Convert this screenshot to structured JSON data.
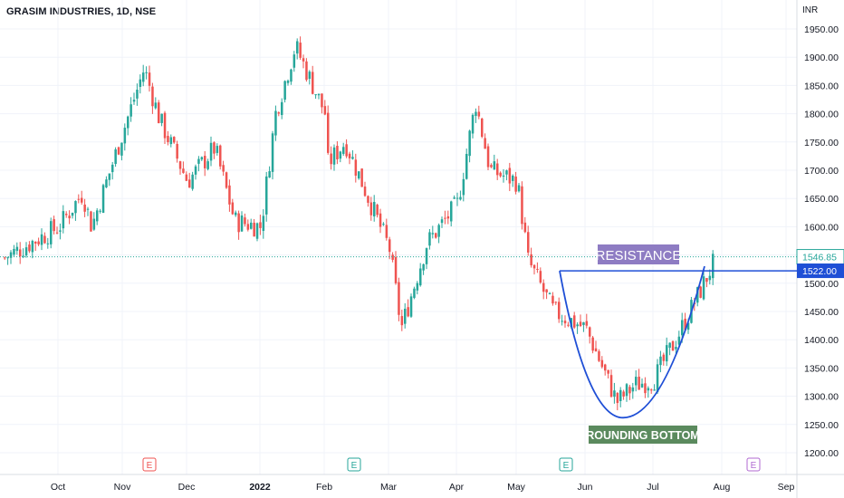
{
  "header": {
    "title": "GRASIM INDUSTRIES, 1D, NSE",
    "currency": "INR"
  },
  "colors": {
    "up": "#26a69a",
    "down": "#ef5350",
    "line": "#1f4fd6",
    "resistance_label_bg": "#8e7cc3",
    "bottom_label_bg": "#5b8a5e",
    "earn_down": "#ef5350",
    "earn_up": "#26a69a",
    "earn_future": "#b069d1"
  },
  "annotations": {
    "resistance": "RESISTANCE",
    "rounding_bottom": "ROUNDING BOTTOM"
  },
  "price_labels": {
    "last": "1546.85",
    "resistance": "1522.00"
  },
  "earnings": [
    {
      "month": "Nov",
      "label": "E",
      "color": "down"
    },
    {
      "month": "Feb",
      "label": "E",
      "color": "up"
    },
    {
      "month": "May",
      "label": "E",
      "color": "up"
    },
    {
      "month": "Aug",
      "label": "E",
      "color": "future"
    }
  ],
  "chart_data": {
    "type": "candlestick",
    "title": "GRASIM INDUSTRIES, 1D, NSE",
    "y_unit": "INR",
    "ylim": [
      1180,
      1970
    ],
    "y_ticks": [
      "1950.00",
      "1900.00",
      "1850.00",
      "1800.00",
      "1750.00",
      "1700.00",
      "1650.00",
      "1600.00",
      "1550.00",
      "1500.00",
      "1450.00",
      "1400.00",
      "1350.00",
      "1300.00",
      "1250.00",
      "1200.00"
    ],
    "x_ticks": [
      "Oct",
      "Nov",
      "Dec",
      "2022",
      "Feb",
      "Mar",
      "Apr",
      "May",
      "Jun",
      "Jul",
      "Aug",
      "Sep"
    ],
    "close_path": [
      [
        "Sep (late)",
        1545
      ],
      [
        "Oct",
        1600
      ],
      [
        "Oct (mid)",
        1660
      ],
      [
        "Oct (late)",
        1600
      ],
      [
        "Nov",
        1770
      ],
      [
        "Nov (mid)",
        1880
      ],
      [
        "Nov (late)",
        1790
      ],
      [
        "Dec",
        1680
      ],
      [
        "Dec (mid)",
        1740
      ],
      [
        "Dec (late)",
        1610
      ],
      [
        "2022",
        1600
      ],
      [
        "Jan (mid)",
        1800
      ],
      [
        "Jan (late)",
        1920
      ],
      [
        "Feb",
        1800
      ],
      [
        "Feb (mid)",
        1680
      ],
      [
        "Feb (late)",
        1750
      ],
      [
        "Mar",
        1560
      ],
      [
        "Mar (mid)",
        1420
      ],
      [
        "Mar (late)",
        1570
      ],
      [
        "Apr",
        1640
      ],
      [
        "Apr (mid)",
        1820
      ],
      [
        "Apr (late)",
        1700
      ],
      [
        "May",
        1680
      ],
      [
        "May (mid)",
        1540
      ],
      [
        "May (late)",
        1450
      ],
      [
        "Jun",
        1420
      ],
      [
        "Jun (mid)",
        1290
      ],
      [
        "Jun (late)",
        1320
      ],
      [
        "Jul",
        1330
      ],
      [
        "Jul (mid)",
        1400
      ],
      [
        "Jul (late)",
        1480
      ],
      [
        "Jul (end)",
        1546.85
      ]
    ],
    "last_price": 1546.85,
    "resistance": 1522.0,
    "pattern": "rounding bottom"
  }
}
